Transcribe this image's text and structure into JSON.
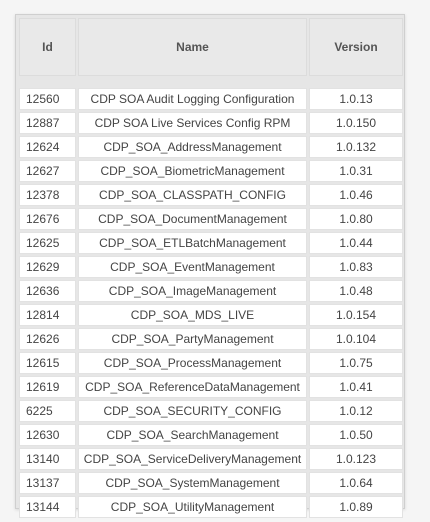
{
  "table": {
    "headers": {
      "id": "Id",
      "name": "Name",
      "version": "Version"
    },
    "rows": [
      {
        "id": "12560",
        "name": "CDP SOA Audit Logging Configuration",
        "version": "1.0.13"
      },
      {
        "id": "12887",
        "name": "CDP SOA Live Services Config RPM",
        "version": "1.0.150"
      },
      {
        "id": "12624",
        "name": "CDP_SOA_AddressManagement",
        "version": "1.0.132"
      },
      {
        "id": "12627",
        "name": "CDP_SOA_BiometricManagement",
        "version": "1.0.31"
      },
      {
        "id": "12378",
        "name": "CDP_SOA_CLASSPATH_CONFIG",
        "version": "1.0.46"
      },
      {
        "id": "12676",
        "name": "CDP_SOA_DocumentManagement",
        "version": "1.0.80"
      },
      {
        "id": "12625",
        "name": "CDP_SOA_ETLBatchManagement",
        "version": "1.0.44"
      },
      {
        "id": "12629",
        "name": "CDP_SOA_EventManagement",
        "version": "1.0.83"
      },
      {
        "id": "12636",
        "name": "CDP_SOA_ImageManagement",
        "version": "1.0.48"
      },
      {
        "id": "12814",
        "name": "CDP_SOA_MDS_LIVE",
        "version": "1.0.154"
      },
      {
        "id": "12626",
        "name": "CDP_SOA_PartyManagement",
        "version": "1.0.104"
      },
      {
        "id": "12615",
        "name": "CDP_SOA_ProcessManagement",
        "version": "1.0.75"
      },
      {
        "id": "12619",
        "name": "CDP_SOA_ReferenceDataManagement",
        "version": "1.0.41"
      },
      {
        "id": "6225",
        "name": "CDP_SOA_SECURITY_CONFIG",
        "version": "1.0.12"
      },
      {
        "id": "12630",
        "name": "CDP_SOA_SearchManagement",
        "version": "1.0.50"
      },
      {
        "id": "13140",
        "name": "CDP_SOA_ServiceDeliveryManagement",
        "version": "1.0.123"
      },
      {
        "id": "13137",
        "name": "CDP_SOA_SystemManagement",
        "version": "1.0.64"
      },
      {
        "id": "13144",
        "name": "CDP_SOA_UtilityManagement",
        "version": "1.0.89"
      }
    ]
  }
}
